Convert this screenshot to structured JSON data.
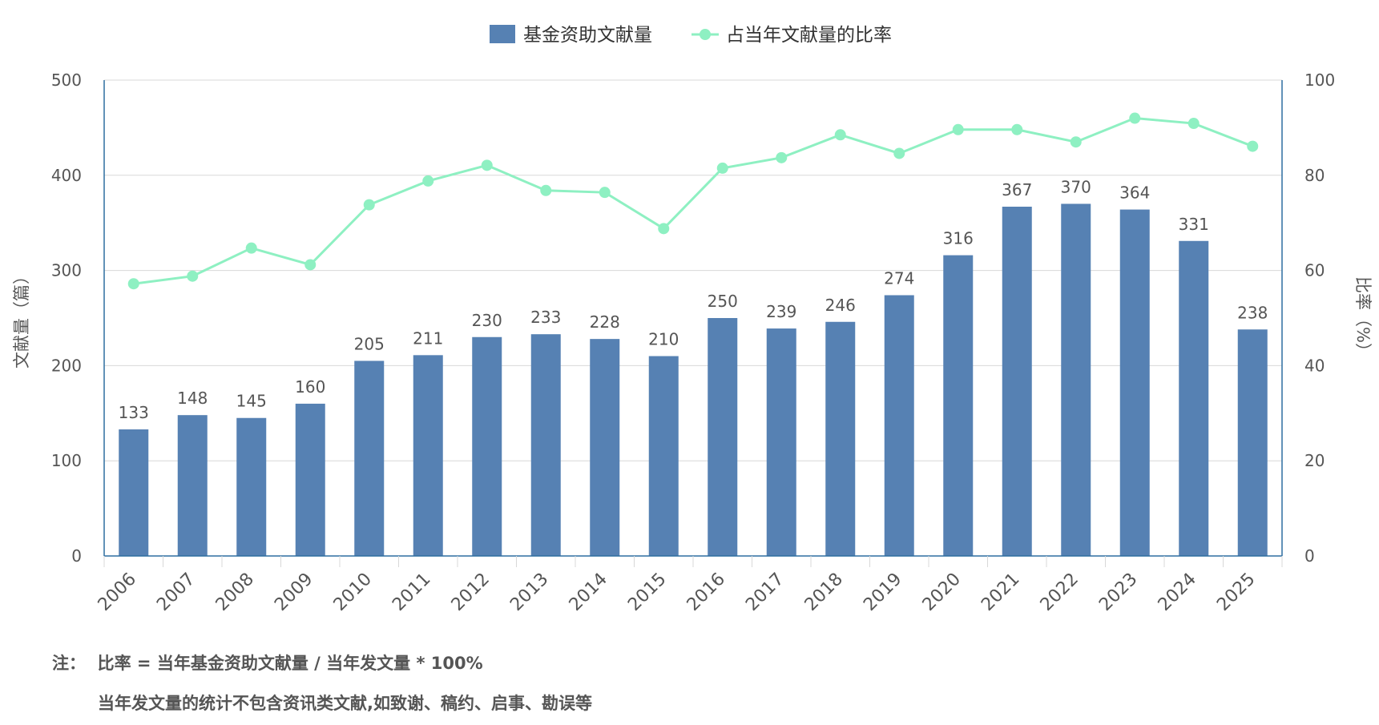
{
  "chart_data": {
    "type": "bar",
    "categories": [
      "2006",
      "2007",
      "2008",
      "2009",
      "2010",
      "2011",
      "2012",
      "2013",
      "2014",
      "2015",
      "2016",
      "2017",
      "2018",
      "2019",
      "2020",
      "2021",
      "2022",
      "2023",
      "2024",
      "2025"
    ],
    "series": [
      {
        "name": "基金资助文献量",
        "type": "bar",
        "axis": "left",
        "color": "#5681b3",
        "values": [
          133,
          148,
          145,
          160,
          205,
          211,
          230,
          233,
          228,
          210,
          250,
          239,
          246,
          274,
          316,
          367,
          370,
          364,
          331,
          238
        ]
      },
      {
        "name": "占当年文献量的比率",
        "type": "line",
        "axis": "right",
        "color": "#8ef0c2",
        "values": [
          57.2,
          58.8,
          64.7,
          61.2,
          73.8,
          78.8,
          82.1,
          76.8,
          76.4,
          68.8,
          81.5,
          83.7,
          88.5,
          84.6,
          89.6,
          89.6,
          87.0,
          92.0,
          90.9,
          86.1
        ]
      }
    ],
    "ylabel": "文献量（篇）",
    "y2label": "比率（%）",
    "ylim": [
      0,
      500
    ],
    "y2lim": [
      0,
      100
    ],
    "yticks": [
      "0",
      "100",
      "200",
      "300",
      "400",
      "500"
    ],
    "y2ticks": [
      "0",
      "20",
      "40",
      "60",
      "80",
      "100"
    ],
    "grid": true,
    "legend_position": "top-center",
    "colors": {
      "axis": "#2f6fa0",
      "grid": "#d8d8d8",
      "tick_text": "#555555",
      "label_text": "#555555"
    }
  },
  "notes": {
    "line1_prefix": "注：",
    "line1": "比率 = 当年基金资助文献量 / 当年发文量 * 100%",
    "line2": "当年发文量的统计不包含资讯类文献,如致谢、稿约、启事、勘误等"
  }
}
